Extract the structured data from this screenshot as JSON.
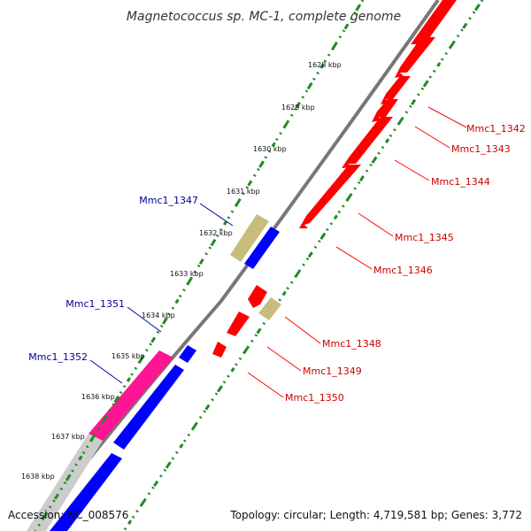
{
  "title": "Magnetococcus sp. MC-1, complete genome",
  "footer": {
    "accession": "Accession: NC_008576",
    "topology": "Topology: circular; Length: 4,719,581 bp; Genes: 3,772"
  },
  "colors": {
    "forward_cds": "#0000ff",
    "reverse_cds": "#ff0000",
    "rna": "#c8bc7c",
    "highlight": "#ff1493",
    "backbone": "#777777",
    "tick_green": "#228b22",
    "label_red": "#cc0000",
    "label_blue": "#000099"
  },
  "ticks": [
    "1628 kbp",
    "1629 kbp",
    "1630 kbp",
    "1631 kbp",
    "1632 kbp",
    "1633 kbp",
    "1634 kbp",
    "1635 kbp",
    "1636 kbp",
    "1637 kbp",
    "1638 kbp"
  ],
  "gene_labels": [
    {
      "text": "Mmc1_1342",
      "color": "red"
    },
    {
      "text": "Mmc1_1343",
      "color": "red"
    },
    {
      "text": "Mmc1_1344",
      "color": "red"
    },
    {
      "text": "Mmc1_1345",
      "color": "red"
    },
    {
      "text": "Mmc1_1346",
      "color": "red"
    },
    {
      "text": "Mmc1_1348",
      "color": "red"
    },
    {
      "text": "Mmc1_1349",
      "color": "red"
    },
    {
      "text": "Mmc1_1350",
      "color": "red"
    },
    {
      "text": "Mmc1_1347",
      "color": "blue"
    },
    {
      "text": "Mmc1_1351",
      "color": "blue"
    },
    {
      "text": "Mmc1_1352",
      "color": "blue"
    }
  ]
}
